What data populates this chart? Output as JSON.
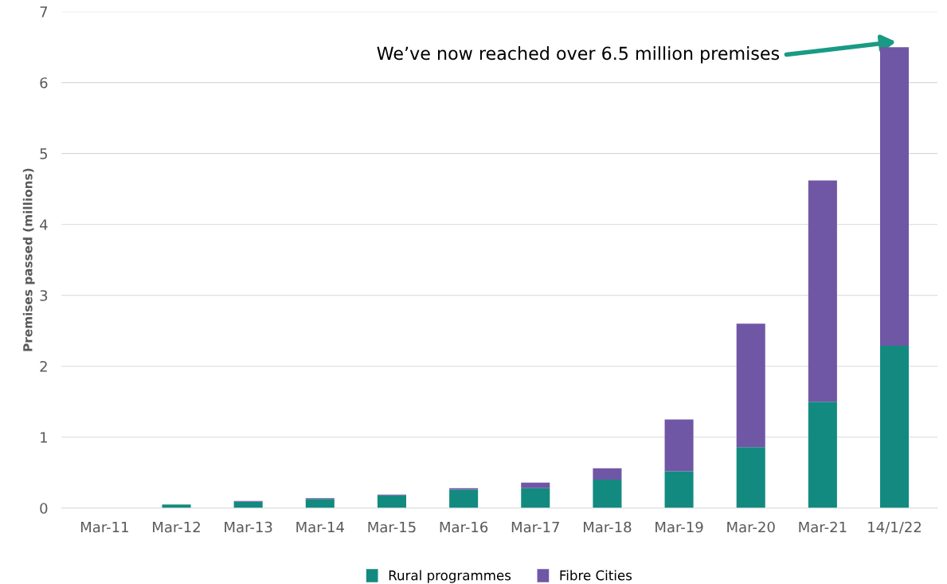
{
  "chart_data": {
    "type": "bar",
    "stacked": true,
    "ylabel": "Premises passed (millions)",
    "categories": [
      "Mar-11",
      "Mar-12",
      "Mar-13",
      "Mar-14",
      "Mar-15",
      "Mar-16",
      "Mar-17",
      "Mar-18",
      "Mar-19",
      "Mar-20",
      "Mar-21",
      "14/1/22"
    ],
    "series": [
      {
        "name": "Rural programmes",
        "color": "#138a80",
        "values": [
          0,
          0.05,
          0.09,
          0.13,
          0.18,
          0.26,
          0.28,
          0.4,
          0.52,
          0.86,
          1.5,
          2.29
        ]
      },
      {
        "name": "Fibre Cities",
        "color": "#6f57a5",
        "values": [
          0,
          0,
          0.01,
          0.01,
          0.01,
          0.02,
          0.08,
          0.16,
          0.73,
          1.74,
          3.12,
          4.21
        ]
      }
    ],
    "ylim": [
      0,
      7
    ],
    "yticks": [
      0,
      1,
      2,
      3,
      4,
      5,
      6,
      7
    ],
    "grid": "y",
    "legend": "bottom",
    "annotations": [
      "We’ve now reached over 6.5 million premises"
    ]
  }
}
